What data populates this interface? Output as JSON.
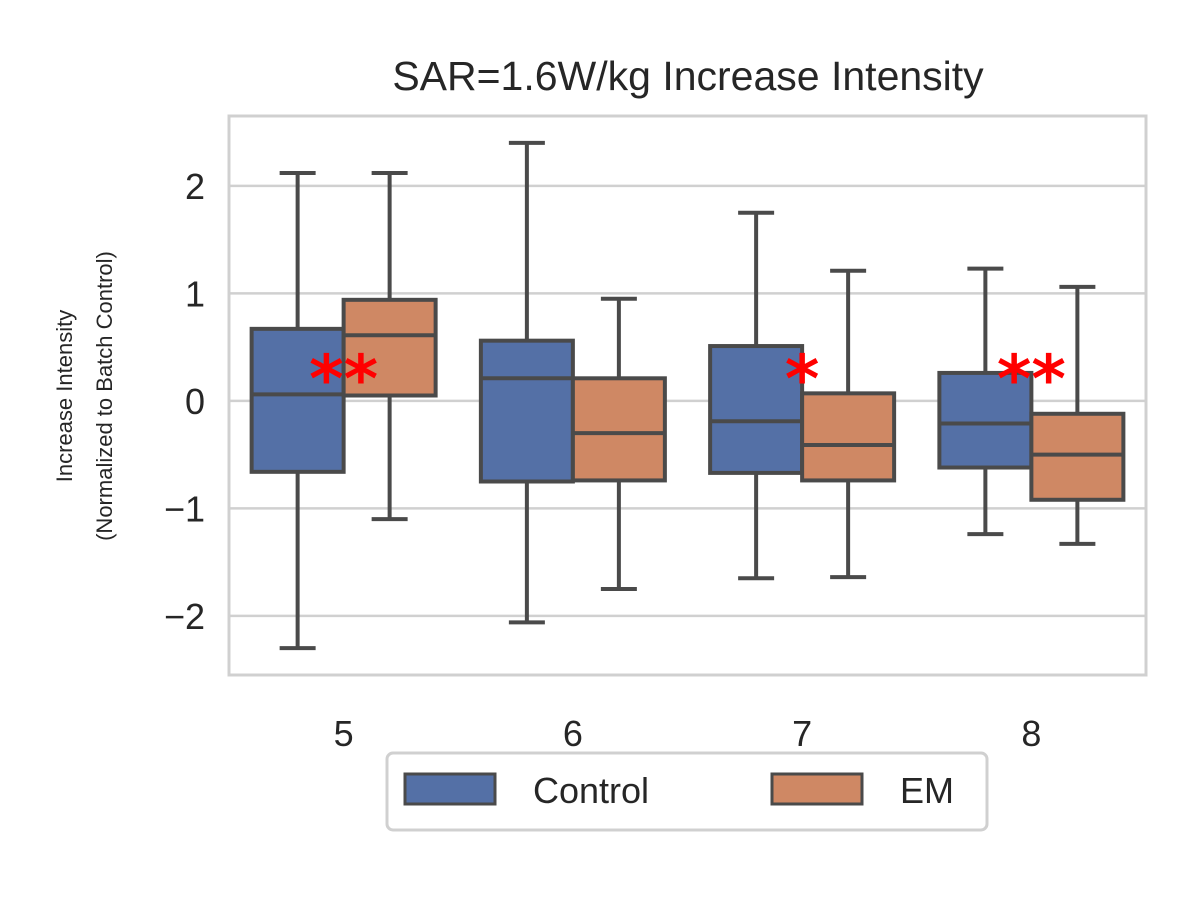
{
  "chart_data": {
    "type": "box",
    "title": "SAR=1.6W/kg Increase Intensity",
    "xlabel": "",
    "ylabel_lines": [
      "Increase Intensity",
      "(Normalized to Batch Control)"
    ],
    "ylim": [
      -2.55,
      2.65
    ],
    "yticks": [
      -2,
      -1,
      0,
      1,
      2
    ],
    "ytick_labels": [
      "−2",
      "−1",
      "0",
      "1",
      "2"
    ],
    "categories": [
      "5",
      "6",
      "7",
      "8"
    ],
    "grid": true,
    "legend_position": "bottom-center",
    "series": [
      {
        "name": "Control",
        "color": "#5470a6",
        "boxes": [
          {
            "whislo": -2.3,
            "q1": -0.66,
            "med": 0.06,
            "q3": 0.67,
            "whishi": 2.12
          },
          {
            "whislo": -2.06,
            "q1": -0.75,
            "med": 0.21,
            "q3": 0.56,
            "whishi": 2.4
          },
          {
            "whislo": -1.65,
            "q1": -0.67,
            "med": -0.19,
            "q3": 0.51,
            "whishi": 1.75
          },
          {
            "whislo": -1.24,
            "q1": -0.62,
            "med": -0.21,
            "q3": 0.26,
            "whishi": 1.23
          }
        ]
      },
      {
        "name": "EM",
        "color": "#cf8864",
        "boxes": [
          {
            "whislo": -1.1,
            "q1": 0.05,
            "med": 0.61,
            "q3": 0.94,
            "whishi": 2.12
          },
          {
            "whislo": -1.75,
            "q1": -0.74,
            "med": -0.3,
            "q3": 0.21,
            "whishi": 0.95
          },
          {
            "whislo": -1.64,
            "q1": -0.74,
            "med": -0.41,
            "q3": 0.07,
            "whishi": 1.21
          },
          {
            "whislo": -1.33,
            "q1": -0.92,
            "med": -0.5,
            "q3": -0.12,
            "whishi": 1.06
          }
        ]
      }
    ],
    "annotations": [
      {
        "category": "5",
        "text": "**",
        "y": 0.38
      },
      {
        "category": "7",
        "text": "*",
        "y": 0.38
      },
      {
        "category": "8",
        "text": "**",
        "y": 0.38
      }
    ]
  },
  "colors": {
    "line": "#4a4a4a",
    "grid": "#d0d0d0",
    "frame": "#d0d0d0",
    "annotation": "#ff0000"
  }
}
